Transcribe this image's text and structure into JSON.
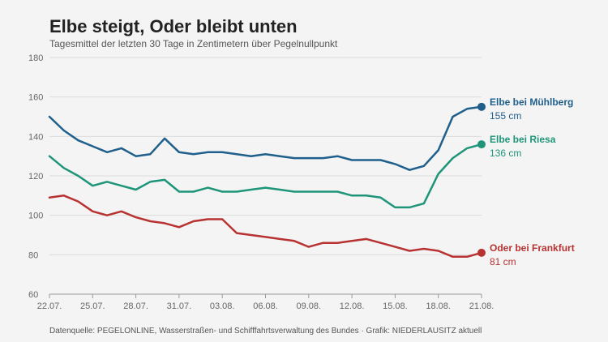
{
  "title": "Elbe steigt, Oder bleibt unten",
  "subtitle": "Tagesmittel der letzten 30 Tage in Zentimetern über Pegelnullpunkt",
  "footer": "Datenquelle: PEGELONLINE, Wasserstraßen- und Schifffahrtsverwaltung des Bundes · Grafik: NIEDERLAUSITZ aktuell",
  "chart_data": {
    "type": "line",
    "ylim": [
      60,
      180
    ],
    "yticks": [
      60,
      80,
      100,
      120,
      140,
      160,
      180
    ],
    "grid": true,
    "x": [
      "22.07.",
      "23.07.",
      "24.07.",
      "25.07.",
      "26.07.",
      "27.07.",
      "28.07.",
      "29.07.",
      "30.07.",
      "31.07.",
      "01.08.",
      "02.08.",
      "03.08.",
      "04.08.",
      "05.08.",
      "06.08.",
      "07.08.",
      "08.08.",
      "09.08.",
      "10.08.",
      "11.08.",
      "12.08.",
      "13.08.",
      "14.08.",
      "15.08.",
      "16.08.",
      "17.08.",
      "18.08.",
      "19.08.",
      "20.08.",
      "21.08."
    ],
    "xticks": [
      "22.07.",
      "25.07.",
      "28.07.",
      "31.07.",
      "03.08.",
      "06.08.",
      "09.08.",
      "12.08.",
      "15.08.",
      "18.08.",
      "21.08."
    ],
    "series": [
      {
        "name": "Elbe bei Mühlberg",
        "end_label": "155 cm",
        "color": "#1f5f8b",
        "values": [
          150,
          143,
          138,
          135,
          132,
          134,
          130,
          131,
          139,
          132,
          131,
          132,
          132,
          131,
          130,
          131,
          130,
          129,
          129,
          129,
          130,
          128,
          128,
          128,
          126,
          123,
          125,
          133,
          150,
          154,
          155
        ]
      },
      {
        "name": "Elbe bei Riesa",
        "end_label": "136 cm",
        "color": "#1e9579",
        "values": [
          130,
          124,
          120,
          115,
          117,
          115,
          113,
          117,
          118,
          112,
          112,
          114,
          112,
          112,
          113,
          114,
          113,
          112,
          112,
          112,
          112,
          110,
          110,
          109,
          104,
          104,
          106,
          121,
          129,
          134,
          136
        ]
      },
      {
        "name": "Oder bei Frankfurt",
        "end_label": "81 cm",
        "color": "#b83232",
        "values": [
          109,
          110,
          107,
          102,
          100,
          102,
          99,
          97,
          96,
          94,
          97,
          98,
          98,
          91,
          90,
          89,
          88,
          87,
          84,
          86,
          86,
          87,
          88,
          86,
          84,
          82,
          83,
          82,
          79,
          79,
          81
        ]
      }
    ]
  }
}
